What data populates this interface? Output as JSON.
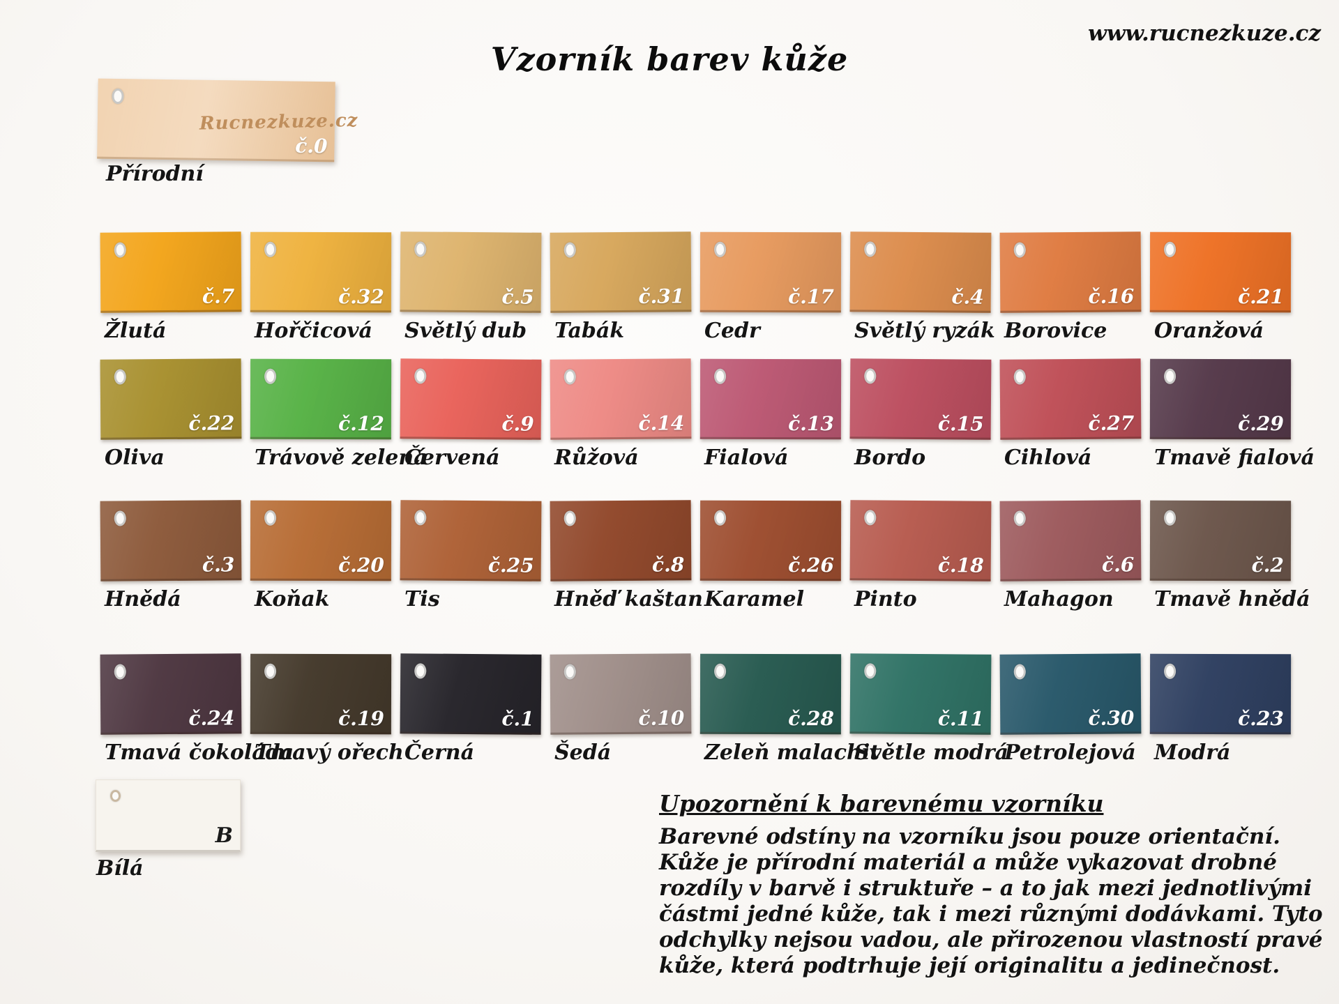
{
  "page": {
    "website": "www.rucnezkuze.cz",
    "title": "Vzorník barev kůže"
  },
  "natural_swatch": {
    "name": "Přírodní",
    "code": "č.0",
    "stamp": "Rucnezkuze.cz",
    "color": "#EFCAA1"
  },
  "rows": [
    {
      "swatches": [
        {
          "name": "Žlutá",
          "code": "č.7",
          "color": "#F3A51B"
        },
        {
          "name": "Hořčicová",
          "code": "č.32",
          "color": "#EFB23E"
        },
        {
          "name": "Světlý dub",
          "code": "č.5",
          "color": "#DEB46E"
        },
        {
          "name": "Tabák",
          "code": "č.31",
          "color": "#D7A75C"
        },
        {
          "name": "Cedr",
          "code": "č.17",
          "color": "#E79A5E"
        },
        {
          "name": "Světlý ryzák",
          "code": "č.4",
          "color": "#DC8C4C"
        },
        {
          "name": "Borovice",
          "code": "č.16",
          "color": "#DF7B41"
        },
        {
          "name": "Oranžová",
          "code": "č.21",
          "color": "#EE7125"
        }
      ]
    },
    {
      "swatches": [
        {
          "name": "Oliva",
          "code": "č.22",
          "color": "#A8902F"
        },
        {
          "name": "Trávově zelená",
          "code": "č.12",
          "color": "#57B246"
        },
        {
          "name": "Červená",
          "code": "č.9",
          "color": "#E9625A"
        },
        {
          "name": "Růžová",
          "code": "č.14",
          "color": "#EE8A85"
        },
        {
          "name": "Fialová",
          "code": "č.13",
          "color": "#BC5873"
        },
        {
          "name": "Bordo",
          "code": "č.15",
          "color": "#BC4E5F"
        },
        {
          "name": "Cihlová",
          "code": "č.27",
          "color": "#BF4F57"
        },
        {
          "name": "Tmavě fialová",
          "code": "č.29",
          "color": "#55394A"
        }
      ]
    },
    {
      "swatches": [
        {
          "name": "Hnědá",
          "code": "č.3",
          "color": "#8D5A3B"
        },
        {
          "name": "Koňak",
          "code": "č.20",
          "color": "#B76C34"
        },
        {
          "name": "Tis",
          "code": "č.25",
          "color": "#AE6136"
        },
        {
          "name": "Hněď kaštan",
          "code": "č.8",
          "color": "#91482B"
        },
        {
          "name": "Karamel",
          "code": "č.26",
          "color": "#9D4D2F"
        },
        {
          "name": "Pinto",
          "code": "č.18",
          "color": "#B75B4F"
        },
        {
          "name": "Mahagon",
          "code": "č.6",
          "color": "#9D5A5D"
        },
        {
          "name": "Tmavě hnědá",
          "code": "č.2",
          "color": "#6C564B"
        }
      ]
    },
    {
      "swatches": [
        {
          "name": "Tmavá čokoláda",
          "code": "č.24",
          "color": "#4E3741"
        },
        {
          "name": "Tmavý ořech",
          "code": "č.19",
          "color": "#44392B"
        },
        {
          "name": "Černá",
          "code": "č.1",
          "color": "#26242A"
        },
        {
          "name": "Šedá",
          "code": "č.10",
          "color": "#A08F8A"
        },
        {
          "name": "Zeleň malachit",
          "code": "č.28",
          "color": "#275A50"
        },
        {
          "name": "Světle modrá",
          "code": "č.11",
          "color": "#2F7265"
        },
        {
          "name": "Petrolejová",
          "code": "č.30",
          "color": "#28586A"
        },
        {
          "name": "Modrá",
          "code": "č.23",
          "color": "#2E3F60"
        }
      ]
    }
  ],
  "white_swatch": {
    "name": "Bílá",
    "code": "B",
    "color": "#F7F4EE"
  },
  "notice": {
    "heading": "Upozornění k barevnému vzorníku",
    "lines": [
      "Barevné odstíny na vzorníku jsou pouze orientační.",
      "Kůže je přírodní materiál a může vykazovat drobné",
      "rozdíly v barvě i struktuře – a to jak mezi jednotlivými",
      "částmi jedné kůže, tak i mezi různými dodávkami. Tyto",
      "odchylky nejsou vadou, ale přirozenou vlastností pravé",
      "kůže, která podtrhuje její originalitu a jedinečnost."
    ]
  }
}
